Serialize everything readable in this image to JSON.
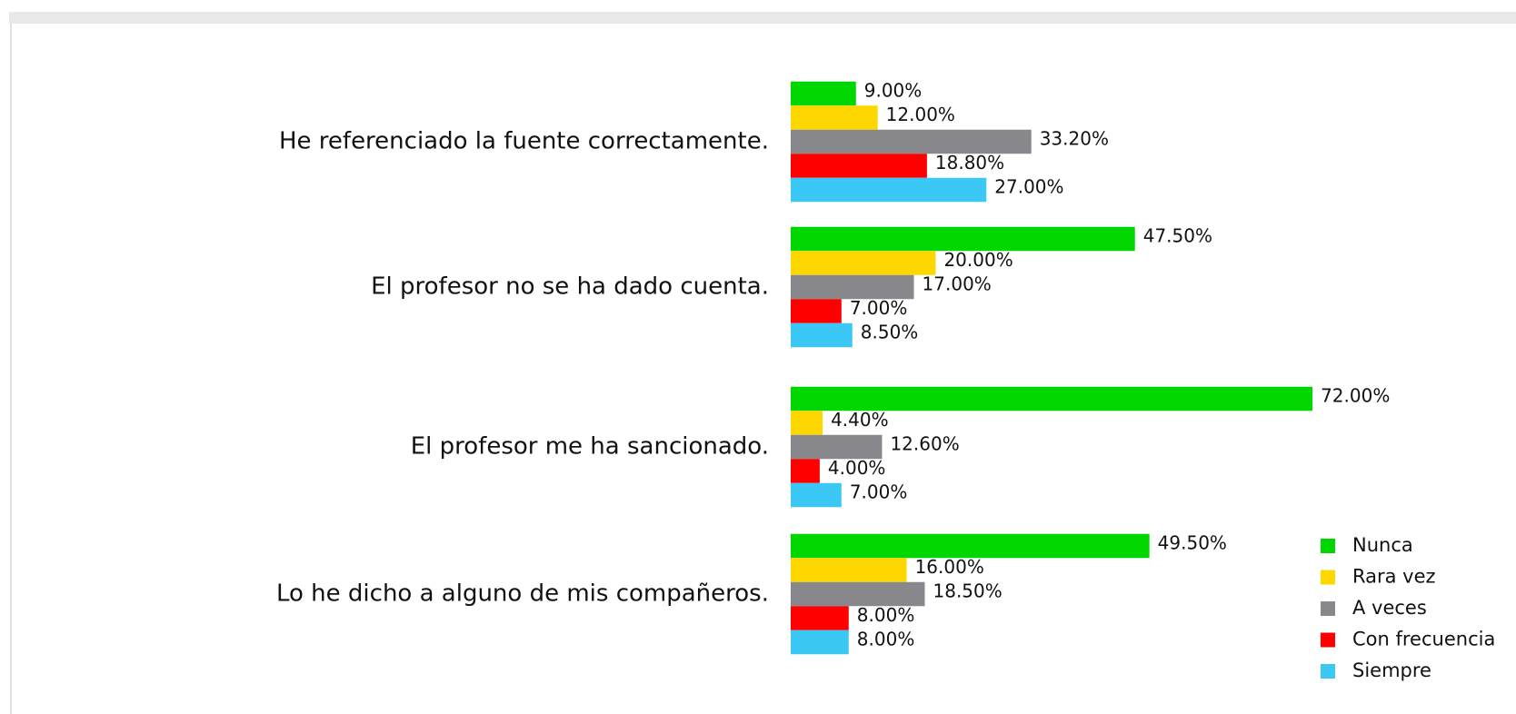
{
  "chart_data": {
    "type": "barh",
    "categories": [
      "He referenciado la fuente correctamente.",
      "El profesor no se ha dado cuenta.",
      "El profesor me ha sancionado.",
      "Lo he dicho a alguno de mis compañeros."
    ],
    "series": [
      {
        "name": "Nunca",
        "color": "#00d600",
        "values": [
          9,
          47.5,
          72,
          49.5
        ],
        "value_labels": [
          "9.00%",
          "47.50%",
          "72.00%",
          "49.50%"
        ]
      },
      {
        "name": "Rara vez",
        "color": "#ffd700",
        "values": [
          12,
          20,
          4.4,
          16
        ],
        "value_labels": [
          "12.00%",
          "20.00%",
          "4.40%",
          "16.00%"
        ]
      },
      {
        "name": "A veces",
        "color": "#88888c",
        "values": [
          33.2,
          17,
          12.6,
          18.5
        ],
        "value_labels": [
          "33.20%",
          "17.00%",
          "12.60%",
          "18.50%"
        ]
      },
      {
        "name": "Con frecuencia",
        "color": "#ff0000",
        "values": [
          18.8,
          7,
          4,
          8
        ],
        "value_labels": [
          "18.80%",
          "7.00%",
          "4.00%",
          "8.00%"
        ]
      },
      {
        "name": "Siempre",
        "color": "#3cc8f5",
        "values": [
          27,
          8.5,
          7,
          8
        ],
        "value_labels": [
          "27.00%",
          "8.50%",
          "7.00%",
          "8.00%"
        ]
      }
    ],
    "xlim": [
      0,
      75
    ],
    "legend": "bottom-right"
  }
}
